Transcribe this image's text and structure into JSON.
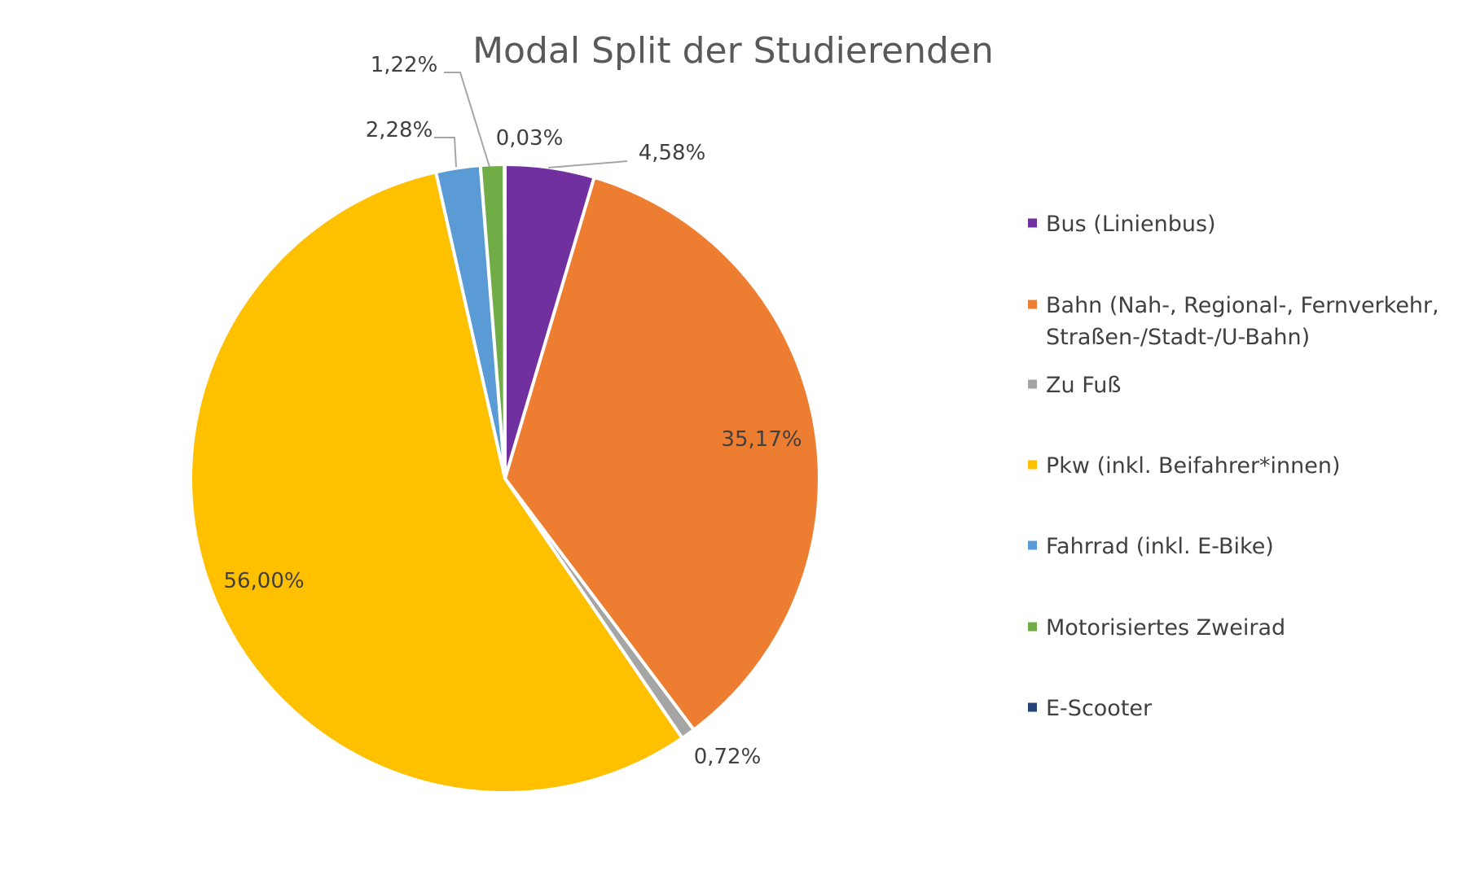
{
  "chart_data": {
    "type": "pie",
    "title": "Modal Split der Studierenden",
    "start_angle_deg": 0,
    "direction": "clockwise",
    "legend_position": "right",
    "slices": [
      {
        "name": "Bus (Linienbus)",
        "value": 4.58,
        "label": "4,58%",
        "color": "#7030A0"
      },
      {
        "name": "Bahn (Nah-, Regional-, Fernverkehr, Straßen-/Stadt-/U-Bahn)",
        "value": 35.17,
        "label": "35,17%",
        "color": "#ED7D31"
      },
      {
        "name": "Zu Fuß",
        "value": 0.72,
        "label": "0,72%",
        "color": "#A5A5A5"
      },
      {
        "name": "Pkw (inkl. Beifahrer*innen)",
        "value": 56.0,
        "label": "56,00%",
        "color": "#FFC000"
      },
      {
        "name": "Fahrrad (inkl. E-Bike)",
        "value": 2.28,
        "label": "2,28%",
        "color": "#5B9BD5"
      },
      {
        "name": "Motorisiertes Zweirad",
        "value": 1.22,
        "label": "1,22%",
        "color": "#70AD47"
      },
      {
        "name": "E-Scooter",
        "value": 0.03,
        "label": "0,03%",
        "color": "#264478"
      }
    ],
    "legend": [
      {
        "lines": [
          "Bus (Linienbus)"
        ]
      },
      {
        "lines": [
          "Bahn (Nah-, Regional-, Fernverkehr,",
          "Straßen-/Stadt-/U-Bahn)"
        ]
      },
      {
        "lines": [
          "Zu Fuß"
        ]
      },
      {
        "lines": [
          "Pkw (inkl. Beifahrer*innen)"
        ]
      },
      {
        "lines": [
          "Fahrrad (inkl. E-Bike)"
        ]
      },
      {
        "lines": [
          "Motorisiertes Zweirad"
        ]
      },
      {
        "lines": [
          "E-Scooter"
        ]
      }
    ]
  }
}
